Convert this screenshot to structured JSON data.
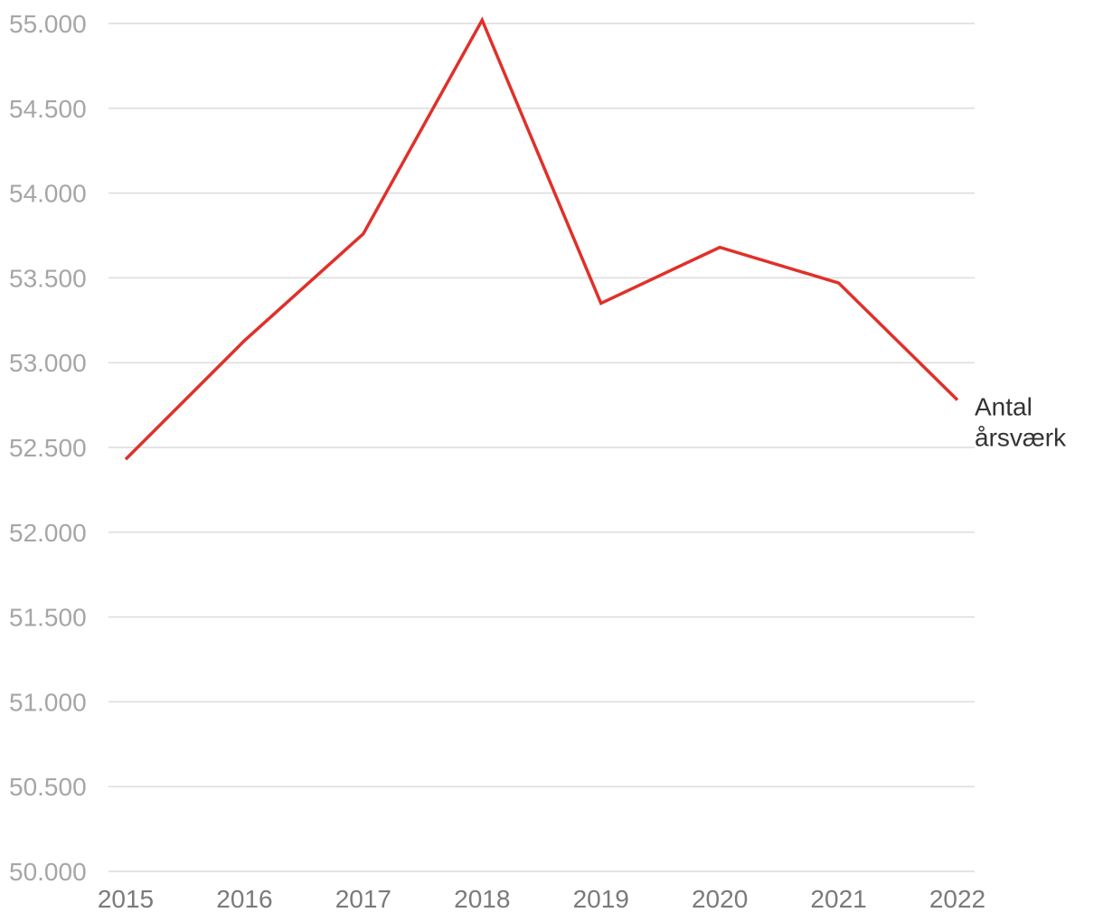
{
  "chart_data": {
    "type": "line",
    "title": "",
    "xlabel": "",
    "ylabel": "",
    "x": [
      "2015",
      "2016",
      "2017",
      "2018",
      "2019",
      "2020",
      "2021",
      "2022"
    ],
    "series": [
      {
        "name": "Antal årsværk",
        "label_lines": [
          "Antal",
          "årsværk"
        ],
        "color": "#e0302a",
        "values": [
          52430,
          53130,
          53760,
          55020,
          53350,
          53680,
          53470,
          52780
        ]
      }
    ],
    "ylim": [
      50000,
      55000
    ],
    "yticks": [
      50000,
      50500,
      51000,
      51500,
      52000,
      52500,
      53000,
      53500,
      54000,
      54500,
      55000
    ],
    "ytick_labels": [
      "50.000",
      "50.500",
      "51.000",
      "51.500",
      "52.000",
      "52.500",
      "53.000",
      "53.500",
      "54.000",
      "54.500",
      "55.000"
    ],
    "grid": true,
    "grid_color": "#dcdcdc",
    "legend": "direct label at line end"
  }
}
